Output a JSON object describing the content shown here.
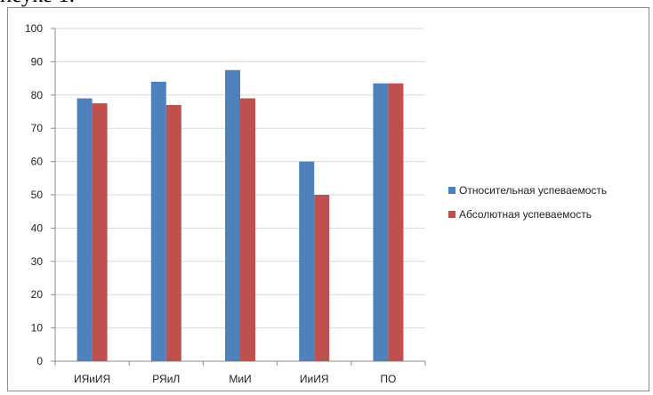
{
  "header_fragment": "неуке 1.",
  "chart_data": {
    "type": "bar",
    "categories": [
      "ИЯиИЯ",
      "РЯиЛ",
      "МиИ",
      "ИиИЯ",
      "ПО"
    ],
    "series": [
      {
        "name": "Относительная успеваемость",
        "color": "#4f81bd",
        "values": [
          79,
          84,
          87.5,
          60,
          83.5
        ]
      },
      {
        "name": "Абсолютная успеваемость",
        "color": "#c0504d",
        "values": [
          77.5,
          77,
          79,
          50,
          83.5
        ]
      }
    ],
    "title": "",
    "xlabel": "",
    "ylabel": "",
    "ylim": [
      0,
      100
    ],
    "yticks": [
      0,
      10,
      20,
      30,
      40,
      50,
      60,
      70,
      80,
      90,
      100
    ],
    "grid": true,
    "legend_position": "right"
  }
}
